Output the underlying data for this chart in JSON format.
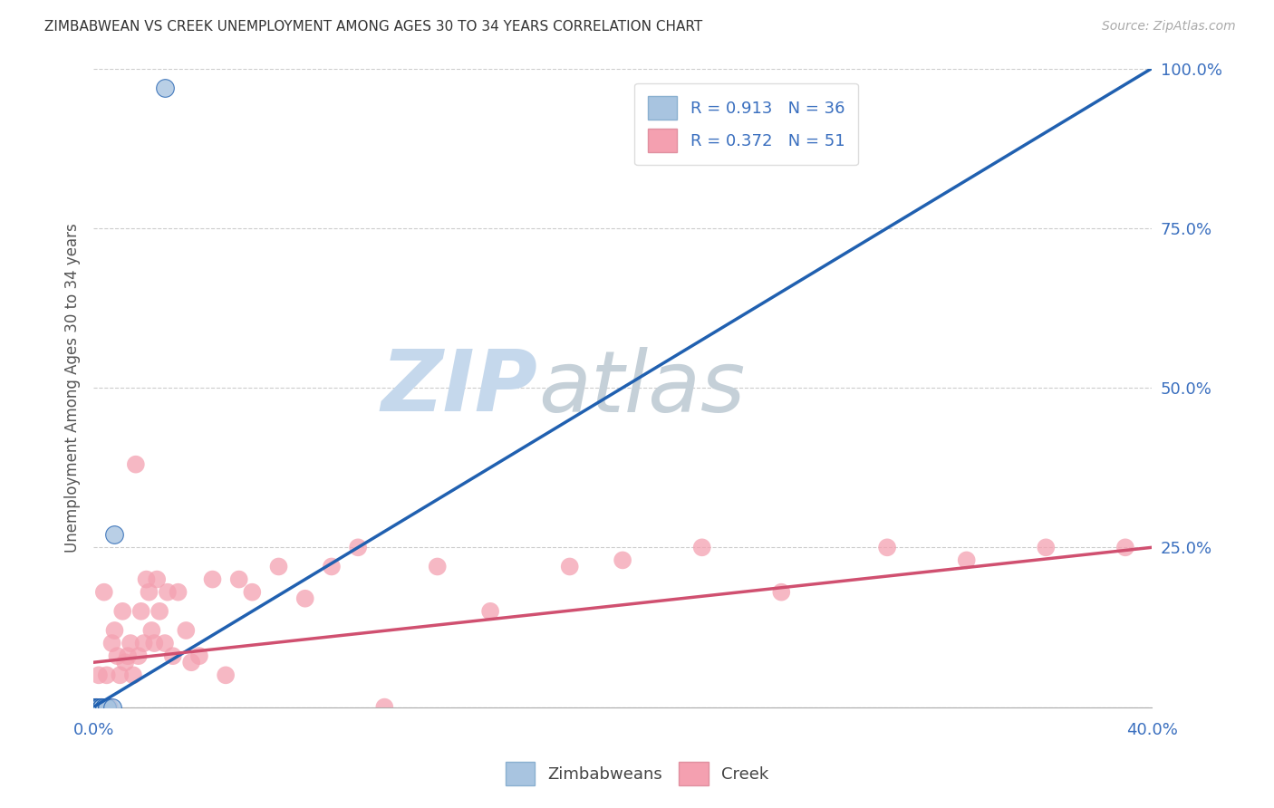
{
  "title": "ZIMBABWEAN VS CREEK UNEMPLOYMENT AMONG AGES 30 TO 34 YEARS CORRELATION CHART",
  "source": "Source: ZipAtlas.com",
  "ylabel": "Unemployment Among Ages 30 to 34 years",
  "xlim": [
    0.0,
    0.4
  ],
  "ylim": [
    0.0,
    1.0
  ],
  "xticks": [
    0.0,
    0.1,
    0.2,
    0.3,
    0.4
  ],
  "xtick_labels": [
    "0.0%",
    "",
    "",
    "",
    "40.0%"
  ],
  "yticks": [
    0.0,
    0.25,
    0.5,
    0.75,
    1.0
  ],
  "ytick_labels": [
    "",
    "25.0%",
    "50.0%",
    "75.0%",
    "100.0%"
  ],
  "zim_R": 0.913,
  "zim_N": 36,
  "creek_R": 0.372,
  "creek_N": 51,
  "zim_color": "#a8c4e0",
  "creek_color": "#f4a0b0",
  "zim_line_color": "#2060b0",
  "creek_line_color": "#d05070",
  "watermark_zip": "ZIP",
  "watermark_atlas": "atlas",
  "watermark_color_zip": "#c5d8ec",
  "watermark_color_atlas": "#c5d0d8",
  "zim_line_x": [
    0.0,
    0.4
  ],
  "zim_line_y": [
    0.0,
    1.0
  ],
  "creek_line_x": [
    0.0,
    0.4
  ],
  "creek_line_y": [
    0.07,
    0.25
  ],
  "zim_scatter_x": [
    0.0,
    0.001,
    0.001,
    0.001,
    0.001,
    0.001,
    0.001,
    0.001,
    0.001,
    0.001,
    0.001,
    0.001,
    0.001,
    0.001,
    0.001,
    0.001,
    0.001,
    0.002,
    0.002,
    0.002,
    0.002,
    0.002,
    0.002,
    0.002,
    0.003,
    0.003,
    0.003,
    0.003,
    0.003,
    0.004,
    0.004,
    0.005,
    0.005,
    0.007,
    0.008,
    0.027
  ],
  "zim_scatter_y": [
    0.0,
    0.0,
    0.0,
    0.0,
    0.0,
    0.0,
    0.0,
    0.0,
    0.0,
    0.0,
    0.0,
    0.0,
    0.0,
    0.0,
    0.0,
    0.0,
    0.0,
    0.0,
    0.0,
    0.0,
    0.0,
    0.0,
    0.0,
    0.0,
    0.0,
    0.0,
    0.0,
    0.0,
    0.0,
    0.0,
    0.0,
    0.0,
    0.0,
    0.0,
    0.27,
    0.97
  ],
  "creek_scatter_x": [
    0.001,
    0.002,
    0.003,
    0.004,
    0.005,
    0.006,
    0.007,
    0.008,
    0.009,
    0.01,
    0.011,
    0.012,
    0.013,
    0.014,
    0.015,
    0.016,
    0.017,
    0.018,
    0.019,
    0.02,
    0.021,
    0.022,
    0.023,
    0.024,
    0.025,
    0.027,
    0.028,
    0.03,
    0.032,
    0.035,
    0.037,
    0.04,
    0.045,
    0.05,
    0.055,
    0.06,
    0.07,
    0.08,
    0.09,
    0.1,
    0.11,
    0.13,
    0.15,
    0.18,
    0.2,
    0.23,
    0.26,
    0.3,
    0.33,
    0.36,
    0.39
  ],
  "creek_scatter_y": [
    0.0,
    0.05,
    0.0,
    0.18,
    0.05,
    0.0,
    0.1,
    0.12,
    0.08,
    0.05,
    0.15,
    0.07,
    0.08,
    0.1,
    0.05,
    0.38,
    0.08,
    0.15,
    0.1,
    0.2,
    0.18,
    0.12,
    0.1,
    0.2,
    0.15,
    0.1,
    0.18,
    0.08,
    0.18,
    0.12,
    0.07,
    0.08,
    0.2,
    0.05,
    0.2,
    0.18,
    0.22,
    0.17,
    0.22,
    0.25,
    0.0,
    0.22,
    0.15,
    0.22,
    0.23,
    0.25,
    0.18,
    0.25,
    0.23,
    0.25,
    0.25
  ]
}
